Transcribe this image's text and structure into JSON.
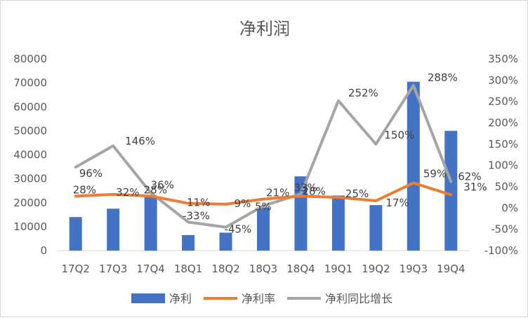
{
  "chart_data": {
    "type": "bar",
    "title": "净利润",
    "categories": [
      "17Q2",
      "17Q3",
      "17Q4",
      "18Q1",
      "18Q2",
      "18Q3",
      "18Q4",
      "19Q1",
      "19Q2",
      "19Q3",
      "19Q4"
    ],
    "series": [
      {
        "name": "净利",
        "type": "bar",
        "axis": "left",
        "color": "#4472C4",
        "values": [
          14000,
          17500,
          22500,
          6500,
          7500,
          18000,
          31000,
          23000,
          19000,
          70500,
          50000
        ]
      },
      {
        "name": "净利率",
        "type": "line",
        "axis": "right",
        "color": "#ED7D31",
        "values": [
          0.28,
          0.32,
          0.28,
          0.11,
          0.09,
          0.21,
          0.28,
          0.25,
          0.17,
          0.59,
          0.31
        ],
        "labels": [
          "28%",
          "32%",
          "28%",
          "11%",
          "9%",
          "21%",
          "28%",
          "25%",
          "17%",
          "59%",
          "31%"
        ]
      },
      {
        "name": "净利同比增长",
        "type": "line",
        "axis": "right",
        "color": "#A5A5A5",
        "values": [
          0.96,
          1.46,
          0.36,
          -0.33,
          -0.45,
          0.05,
          0.33,
          2.52,
          1.5,
          2.88,
          0.62
        ],
        "labels": [
          "96%",
          "146%",
          "36%",
          "-33%",
          "-45%",
          "5%",
          "33%",
          "252%",
          "150%",
          "288%",
          "62%"
        ]
      }
    ],
    "left_axis": {
      "min": 0,
      "max": 80000,
      "ticks": [
        "0",
        "10000",
        "20000",
        "30000",
        "40000",
        "50000",
        "60000",
        "70000",
        "80000"
      ]
    },
    "right_axis": {
      "min": -1.0,
      "max": 3.5,
      "ticks": [
        "-100%",
        "-50%",
        "0%",
        "50%",
        "100%",
        "150%",
        "200%",
        "250%",
        "300%",
        "350%"
      ]
    },
    "legend": "bottom",
    "grid": false
  }
}
